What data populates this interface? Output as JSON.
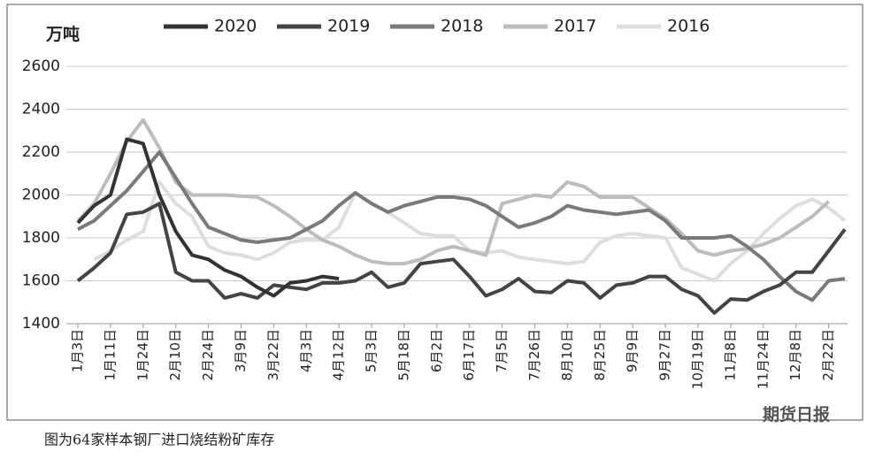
{
  "chart_data": {
    "type": "line",
    "unit_label": "万吨",
    "caption": "图为64家样本钢厂进口烧结粉矿库存",
    "watermark": "期货日报",
    "categories": [
      "1月3日",
      null,
      "1月11日",
      null,
      "1月24日",
      null,
      "2月10日",
      null,
      "2月24日",
      null,
      "3月9日",
      null,
      "3月22日",
      null,
      "4月3日",
      null,
      "4月12日",
      null,
      "5月3日",
      null,
      "5月18日",
      null,
      "6月2日",
      null,
      "6月17日",
      null,
      "7月5日",
      null,
      "7月26日",
      null,
      "8月10日",
      null,
      "8月25日",
      null,
      "9月9日",
      null,
      "9月27日",
      null,
      "10月19日",
      null,
      "11月8日",
      null,
      "11月24日",
      null,
      "12月8日",
      null,
      "2月22日",
      null
    ],
    "ylim": [
      1400,
      2600
    ],
    "yticks": [
      1400,
      1600,
      1800,
      2000,
      2200,
      2400,
      2600
    ],
    "grid": true,
    "legend": "top",
    "series": [
      {
        "name": "2020",
        "color": "#333333",
        "values": [
          1870,
          1950,
          2000,
          2260,
          2240,
          2000,
          1830,
          1720,
          1700,
          1650,
          1620,
          1570,
          1530,
          1590,
          1600,
          1620,
          1610,
          null,
          null,
          null,
          null,
          null,
          null,
          null,
          null,
          null,
          null,
          null,
          null,
          null,
          null,
          null,
          null,
          null,
          null,
          null,
          null,
          null,
          null,
          null,
          null,
          null,
          null,
          null,
          null,
          null,
          null,
          null
        ]
      },
      {
        "name": "2019",
        "color": "#444444",
        "values": [
          1600,
          1660,
          1730,
          1910,
          1920,
          1960,
          1640,
          1600,
          1600,
          1520,
          1540,
          1520,
          1580,
          1570,
          1560,
          1590,
          1590,
          1600,
          1640,
          1570,
          1590,
          1680,
          1690,
          1700,
          1620,
          1530,
          1560,
          1610,
          1550,
          1545,
          1600,
          1590,
          1520,
          1580,
          1590,
          1620,
          1620,
          1560,
          1530,
          1450,
          1515,
          1510,
          1550,
          1580,
          1640,
          1640,
          1740,
          1840
        ]
      },
      {
        "name": "2018",
        "color": "#7a7a7a",
        "values": [
          1840,
          1880,
          1950,
          2020,
          2110,
          2200,
          2080,
          1960,
          1850,
          1820,
          1790,
          1780,
          1790,
          1800,
          1840,
          1880,
          1950,
          2010,
          1960,
          1920,
          1950,
          1970,
          1990,
          1990,
          1980,
          1950,
          1900,
          1850,
          1870,
          1900,
          1950,
          1930,
          1920,
          1910,
          1920,
          1930,
          1880,
          1800,
          1800,
          1800,
          1810,
          1760,
          1700,
          1620,
          1550,
          1510,
          1600,
          1610
        ]
      },
      {
        "name": "2017",
        "color": "#bdbdbd",
        "values": [
          1880,
          1960,
          2100,
          2250,
          2350,
          2220,
          2060,
          2000,
          2000,
          2000,
          1995,
          1990,
          1950,
          1900,
          1840,
          1790,
          1760,
          1720,
          1690,
          1680,
          1680,
          1700,
          1740,
          1760,
          1740,
          1720,
          1960,
          1980,
          2000,
          1990,
          2060,
          2040,
          1990,
          1990,
          1990,
          1940,
          1890,
          1820,
          1740,
          1720,
          1740,
          1750,
          1770,
          1800,
          1850,
          1900,
          1970,
          null
        ]
      },
      {
        "name": "2016",
        "color": "#dedede",
        "values": [
          null,
          1700,
          1740,
          1790,
          1830,
          2060,
          1960,
          1900,
          1760,
          1730,
          1720,
          1700,
          1730,
          1780,
          1790,
          1790,
          1850,
          2010,
          1960,
          1920,
          1870,
          1820,
          1810,
          1810,
          1740,
          1730,
          1740,
          1710,
          1700,
          1690,
          1680,
          1690,
          1780,
          1810,
          1820,
          1810,
          1800,
          1660,
          1630,
          1600,
          1680,
          1740,
          1820,
          1890,
          1950,
          1980,
          1940,
          1880
        ]
      }
    ]
  }
}
